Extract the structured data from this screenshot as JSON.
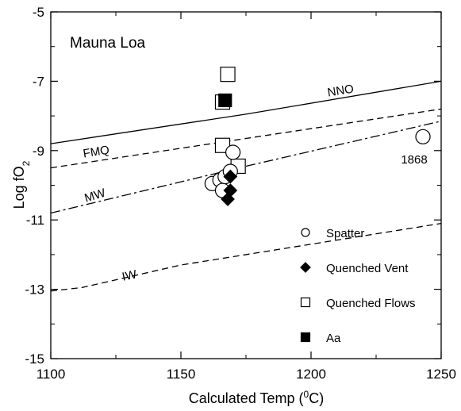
{
  "chart_data": {
    "type": "scatter",
    "title": "Mauna Loa",
    "xlabel": {
      "prefix": "Calculated Temp (",
      "sup": "0",
      "suffix": "C)"
    },
    "ylabel": {
      "prefix": "Log fO",
      "sub": "2"
    },
    "xlim": [
      1100,
      1250
    ],
    "ylim": [
      -15,
      -5
    ],
    "x_ticks": [
      1100,
      1150,
      1200,
      1250
    ],
    "y_ticks": [
      -15,
      -13,
      -11,
      -9,
      -7,
      -5
    ],
    "minor_ticks": true,
    "grid": false,
    "legend_placement": "bottom-right",
    "buffer_curves": [
      {
        "name": "NNO",
        "style": "solid",
        "points": [
          [
            1100,
            -8.8
          ],
          [
            1175,
            -7.95
          ],
          [
            1250,
            -7.0
          ]
        ]
      },
      {
        "name": "FMQ",
        "style": "dashed",
        "points": [
          [
            1100,
            -9.5
          ],
          [
            1175,
            -8.65
          ],
          [
            1250,
            -7.8
          ]
        ]
      },
      {
        "name": "MW",
        "style": "dashdot",
        "points": [
          [
            1100,
            -10.8
          ],
          [
            1175,
            -9.45
          ],
          [
            1250,
            -8.15
          ]
        ]
      },
      {
        "name": "IW",
        "style": "dashed",
        "points": [
          [
            1100,
            -13.05
          ],
          [
            1112,
            -12.95
          ],
          [
            1150,
            -12.3
          ],
          [
            1200,
            -11.7
          ],
          [
            1250,
            -11.1
          ]
        ]
      }
    ],
    "series": [
      {
        "name": "Spatter",
        "marker": "open-circle",
        "points": [
          [
            1162,
            -9.95
          ],
          [
            1165,
            -9.85
          ],
          [
            1166,
            -10.15
          ],
          [
            1167,
            -9.75
          ],
          [
            1169,
            -9.6
          ],
          [
            1170,
            -9.05
          ],
          [
            1243,
            -8.6
          ]
        ]
      },
      {
        "name": "Quenched Vent",
        "marker": "filled-diamond",
        "points": [
          [
            1169,
            -9.75
          ],
          [
            1169,
            -10.15
          ],
          [
            1168,
            -10.4
          ]
        ]
      },
      {
        "name": "Quenched Flows",
        "marker": "open-square",
        "points": [
          [
            1168,
            -6.8
          ],
          [
            1166,
            -7.6
          ],
          [
            1166,
            -8.85
          ],
          [
            1172,
            -9.45
          ]
        ]
      },
      {
        "name": "Aa",
        "marker": "filled-square",
        "points": [
          [
            1167,
            -7.55
          ]
        ]
      }
    ],
    "point_labels": [
      {
        "text": "1868",
        "x": 1237,
        "y": -9.1
      }
    ]
  }
}
